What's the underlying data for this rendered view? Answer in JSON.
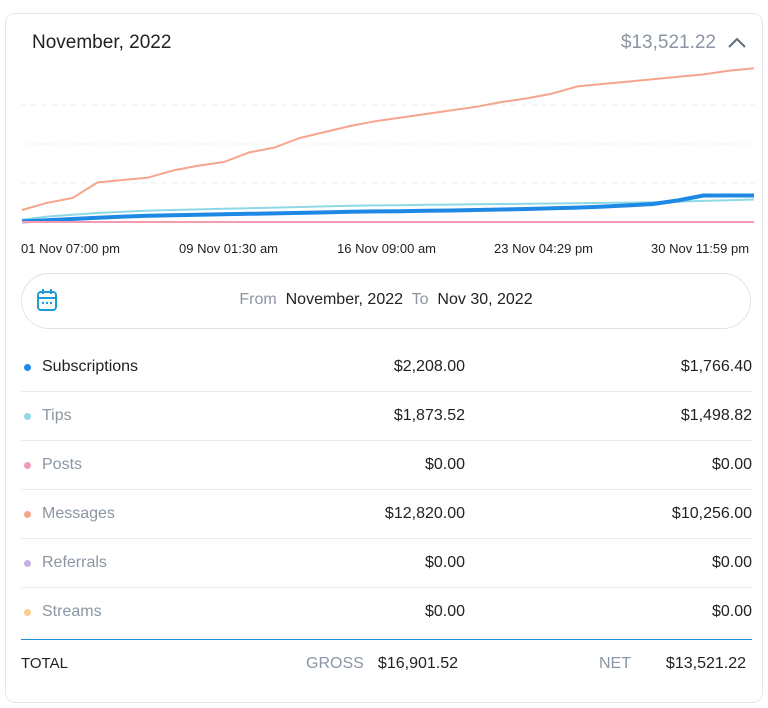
{
  "header": {
    "title": "November, 2022",
    "total": "$13,521.22",
    "collapse_icon": "chevron-up-icon"
  },
  "chart_data": {
    "type": "line",
    "x_ticks": [
      "01 Nov 07:00 pm",
      "09 Nov 01:30 am",
      "16 Nov 09:00 am",
      "23 Nov 04:29 pm",
      "30 Nov 11:59 pm"
    ],
    "ylim": [
      0,
      13000
    ],
    "grid": true,
    "series": [
      {
        "name": "Messages",
        "color": "#f6a58c",
        "x": [
          0,
          1,
          2,
          3,
          4,
          5,
          6,
          7,
          8,
          9,
          10,
          11,
          12,
          13,
          14,
          15,
          16,
          17,
          18,
          19,
          20,
          21,
          22,
          23,
          24,
          25,
          26,
          27,
          28,
          29
        ],
        "values": [
          1000,
          1600,
          2000,
          3300,
          3500,
          3700,
          4300,
          4700,
          5000,
          5800,
          6200,
          7000,
          7500,
          8000,
          8400,
          8700,
          9000,
          9300,
          9600,
          10000,
          10300,
          10700,
          11300,
          11500,
          11700,
          11900,
          12100,
          12300,
          12600,
          12820
        ]
      },
      {
        "name": "Tips",
        "color": "#8fd8e6",
        "x": [
          0,
          1,
          2,
          3,
          4,
          5,
          6,
          7,
          8,
          9,
          10,
          11,
          12,
          13,
          14,
          15,
          16,
          17,
          18,
          19,
          20,
          21,
          22,
          23,
          24,
          25,
          26,
          27,
          28,
          29
        ],
        "values": [
          200,
          450,
          600,
          750,
          850,
          950,
          1000,
          1050,
          1100,
          1150,
          1200,
          1250,
          1300,
          1350,
          1380,
          1400,
          1430,
          1450,
          1480,
          1500,
          1520,
          1540,
          1560,
          1590,
          1620,
          1650,
          1700,
          1760,
          1820,
          1873.52
        ]
      },
      {
        "name": "Subscriptions",
        "color": "#1e88e5",
        "x": [
          0,
          1,
          2,
          3,
          4,
          5,
          6,
          7,
          8,
          9,
          10,
          11,
          12,
          13,
          14,
          15,
          16,
          17,
          18,
          19,
          20,
          21,
          22,
          23,
          24,
          25,
          26,
          27,
          28,
          29
        ],
        "values": [
          50,
          150,
          250,
          350,
          450,
          520,
          560,
          600,
          640,
          680,
          720,
          760,
          800,
          850,
          880,
          900,
          930,
          960,
          1000,
          1040,
          1080,
          1140,
          1200,
          1280,
          1380,
          1500,
          1800,
          2208,
          2208,
          2208
        ]
      },
      {
        "name": "Posts",
        "color": "#f29bb3",
        "x": [
          0,
          29
        ],
        "values": [
          0,
          0
        ]
      }
    ]
  },
  "date_range": {
    "from_label": "From",
    "from_value": "November, 2022",
    "to_label": "To",
    "to_value": "Nov 30, 2022",
    "icon": "calendar-icon"
  },
  "rows": [
    {
      "name": "Subscriptions",
      "gross": "$2,208.00",
      "net": "$1,766.40",
      "color": "#1e88e5"
    },
    {
      "name": "Tips",
      "gross": "$1,873.52",
      "net": "$1,498.82",
      "color": "#8fd8e6"
    },
    {
      "name": "Posts",
      "gross": "$0.00",
      "net": "$0.00",
      "color": "#f29bb3"
    },
    {
      "name": "Messages",
      "gross": "$12,820.00",
      "net": "$10,256.00",
      "color": "#f6a58c"
    },
    {
      "name": "Referrals",
      "gross": "$0.00",
      "net": "$0.00",
      "color": "#c5b3e6"
    },
    {
      "name": "Streams",
      "gross": "$0.00",
      "net": "$0.00",
      "color": "#f9cd8b"
    }
  ],
  "totals": {
    "label": "TOTAL",
    "gross_label": "GROSS",
    "gross": "$16,901.52",
    "net_label": "NET",
    "net": "$13,521.22"
  }
}
